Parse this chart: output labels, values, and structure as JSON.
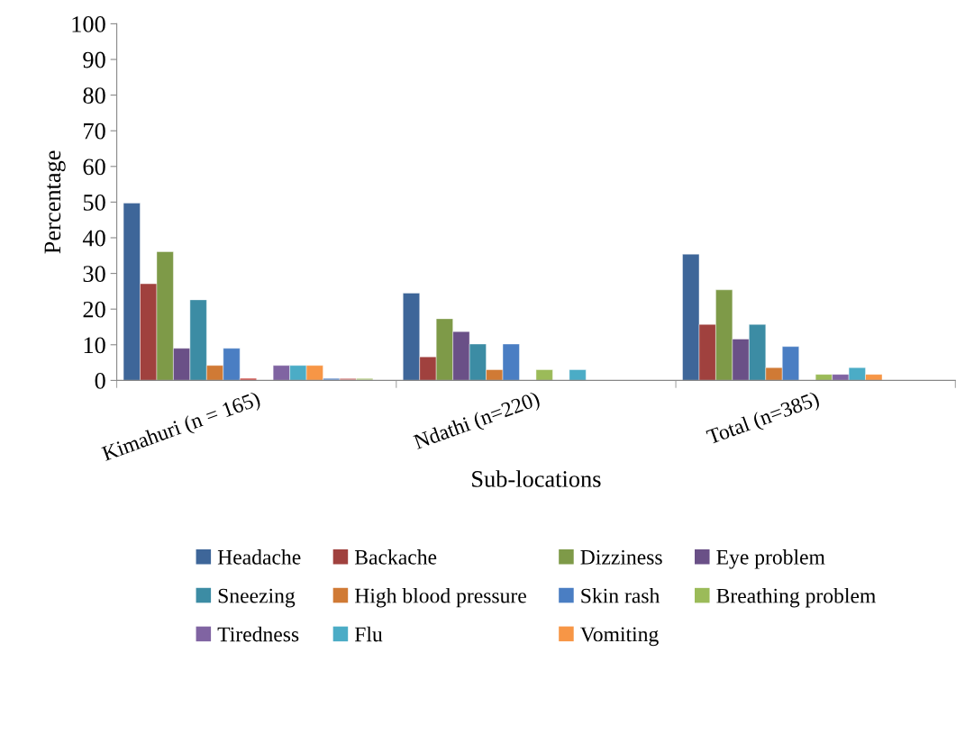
{
  "chart_data": {
    "type": "bar",
    "xlabel": "Sub-locations",
    "ylabel": "Percentage",
    "categories": [
      "Kimahuri (n = 165)",
      "Ndathi (n=220)",
      "Total (n=385)"
    ],
    "ylim": [
      0,
      100
    ],
    "yticks": [
      0,
      10,
      20,
      30,
      40,
      50,
      60,
      70,
      80,
      90,
      100
    ],
    "grid": false,
    "legend": "bottom",
    "series": [
      {
        "name": "Headache",
        "color": "#3e6699",
        "values": [
          49.7,
          24.5,
          35.4
        ]
      },
      {
        "name": "Backache",
        "color": "#a0413e",
        "values": [
          27.1,
          6.6,
          15.7
        ]
      },
      {
        "name": "Dizziness",
        "color": "#7e9a48",
        "values": [
          36.1,
          17.3,
          25.4
        ]
      },
      {
        "name": "Eye problem",
        "color": "#6a5087",
        "values": [
          9.0,
          13.7,
          11.6
        ]
      },
      {
        "name": "Sneezing",
        "color": "#3c8ca4",
        "values": [
          22.6,
          10.2,
          15.7
        ]
      },
      {
        "name": "High blood pressure",
        "color": "#d07a35",
        "values": [
          4.2,
          3.0,
          3.6
        ]
      },
      {
        "name": "Skin rash",
        "color": "#4a7ec3",
        "values": [
          9.0,
          10.2,
          9.5
        ]
      },
      {
        "color": "#d35a56",
        "values": [
          0.6,
          null,
          null
        ]
      },
      {
        "name": "Breathing problem",
        "color": "#9bbb59",
        "values": [
          null,
          3.0,
          1.7
        ]
      },
      {
        "name": "Tiredness",
        "color": "#8064a2",
        "values": [
          4.2,
          null,
          1.7
        ]
      },
      {
        "name": "Flu",
        "color": "#4bacc6",
        "values": [
          4.2,
          3.0,
          3.6
        ]
      },
      {
        "name": "Vomiting",
        "color": "#f79646",
        "values": [
          4.2,
          null,
          1.7
        ]
      },
      {
        "color": "#7c9fd3",
        "values": [
          0.6,
          null,
          null
        ]
      },
      {
        "color": "#d99694",
        "values": [
          0.6,
          null,
          null
        ]
      },
      {
        "color": "#c3d69b",
        "values": [
          0.6,
          null,
          null
        ]
      },
      {
        "color": "#b2a1c7",
        "values": [
          null,
          null,
          null
        ]
      }
    ]
  }
}
